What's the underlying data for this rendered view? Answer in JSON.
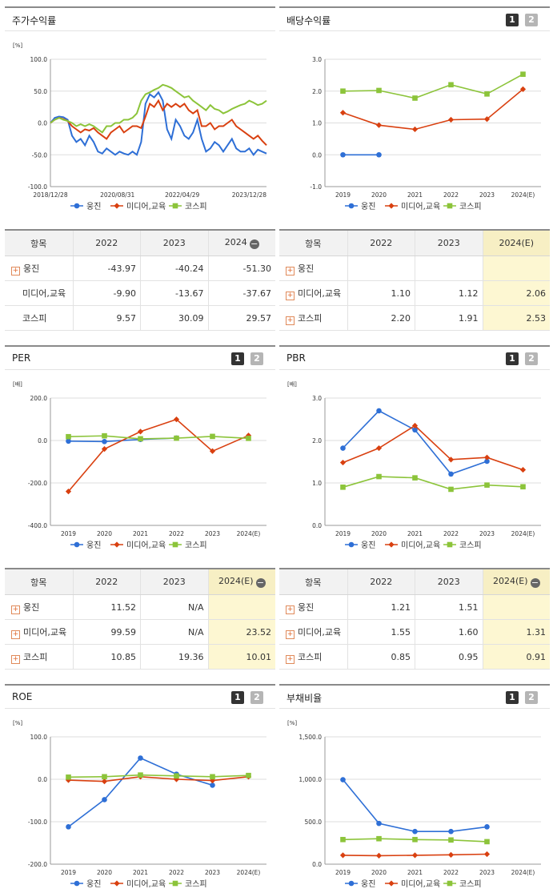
{
  "colors": {
    "s1": "#2e6fd6",
    "s2": "#d94010",
    "s3": "#8cc43a",
    "grid": "#dddddd"
  },
  "legend": [
    "웅진",
    "미디어,교육",
    "코스피"
  ],
  "charts": {
    "stock": {
      "title": "주가수익률",
      "unit": "[%]",
      "buttons": [],
      "type": "line",
      "ylim": [
        -100,
        100
      ],
      "yticks": [
        "100.0",
        "50.0",
        "0.0",
        "-50.0",
        "-100.0"
      ],
      "x_labels": [
        "2018/12/28",
        "2020/08/31",
        "2022/04/29",
        "2023/12/28"
      ],
      "series": [
        {
          "name": "웅진",
          "values": [
            0,
            8,
            10,
            9,
            5,
            -20,
            -30,
            -25,
            -35,
            -20,
            -30,
            -45,
            -48,
            -40,
            -45,
            -50,
            -45,
            -48,
            -50,
            -45,
            -50,
            -30,
            30,
            45,
            40,
            48,
            35,
            -10,
            -25,
            5,
            -5,
            -20,
            -25,
            -15,
            5,
            -25,
            -45,
            -40,
            -30,
            -35,
            -45,
            -35,
            -25,
            -40,
            -45,
            -45,
            -40,
            -50,
            -42,
            -45,
            -48
          ]
        },
        {
          "name": "미디어,교육",
          "values": [
            0,
            5,
            8,
            6,
            3,
            -5,
            -10,
            -15,
            -10,
            -12,
            -8,
            -15,
            -20,
            -25,
            -15,
            -10,
            -5,
            -15,
            -10,
            -5,
            -5,
            -8,
            10,
            30,
            25,
            35,
            20,
            30,
            25,
            30,
            25,
            30,
            20,
            15,
            20,
            -5,
            -5,
            0,
            -10,
            -5,
            -5,
            0,
            5,
            -5,
            -10,
            -15,
            -20,
            -25,
            -20,
            -28,
            -35
          ]
        },
        {
          "name": "코스피",
          "values": [
            0,
            5,
            8,
            5,
            3,
            0,
            -5,
            -2,
            -5,
            -2,
            -5,
            -10,
            -15,
            -5,
            -5,
            0,
            0,
            5,
            5,
            8,
            15,
            35,
            45,
            48,
            52,
            55,
            60,
            58,
            55,
            50,
            45,
            40,
            42,
            35,
            30,
            25,
            20,
            28,
            22,
            20,
            15,
            18,
            22,
            25,
            28,
            30,
            35,
            32,
            28,
            30,
            35
          ]
        }
      ]
    },
    "dividend": {
      "title": "배당수익률",
      "unit": "",
      "buttons": [
        "1",
        "2"
      ],
      "type": "line",
      "ylim": [
        -1,
        3
      ],
      "yticks": [
        "3.0",
        "2.0",
        "1.0",
        "0.0",
        "-1.0"
      ],
      "x_labels": [
        "2019",
        "2020",
        "2021",
        "2022",
        "2023",
        "2024(E)"
      ],
      "series": [
        {
          "name": "웅진",
          "values": [
            0.0,
            0.0,
            null,
            null,
            null,
            null
          ]
        },
        {
          "name": "미디어,교육",
          "values": [
            1.32,
            0.93,
            0.8,
            1.1,
            1.12,
            2.06
          ]
        },
        {
          "name": "코스피",
          "values": [
            2.0,
            2.02,
            1.78,
            2.2,
            1.91,
            2.53
          ]
        }
      ]
    },
    "per": {
      "title": "PER",
      "unit": "[배]",
      "buttons": [
        "1",
        "2"
      ],
      "type": "line",
      "ylim": [
        -400,
        200
      ],
      "yticks": [
        "200.0",
        "0.0",
        "-200.0",
        "-400.0"
      ],
      "x_labels": [
        "2019",
        "2020",
        "2021",
        "2022",
        "2023",
        "2024(E)"
      ],
      "series": [
        {
          "name": "웅진",
          "values": [
            -3,
            -5,
            5,
            11.52,
            null,
            null
          ]
        },
        {
          "name": "미디어,교육",
          "values": [
            -240,
            -40,
            42,
            99.59,
            -50,
            23.52
          ]
        },
        {
          "name": "코스피",
          "values": [
            18,
            22,
            8,
            10.85,
            19.36,
            10.01
          ]
        }
      ]
    },
    "pbr": {
      "title": "PBR",
      "unit": "[배]",
      "buttons": [
        "1",
        "2"
      ],
      "type": "line",
      "ylim": [
        0,
        3
      ],
      "yticks": [
        "3.0",
        "2.0",
        "1.0",
        "0.0"
      ],
      "x_labels": [
        "2019",
        "2020",
        "2021",
        "2022",
        "2023",
        "2024(E)"
      ],
      "series": [
        {
          "name": "웅진",
          "values": [
            1.82,
            2.7,
            2.25,
            1.21,
            1.51,
            null
          ]
        },
        {
          "name": "미디어,교육",
          "values": [
            1.48,
            1.82,
            2.35,
            1.55,
            1.6,
            1.31
          ]
        },
        {
          "name": "코스피",
          "values": [
            0.9,
            1.15,
            1.12,
            0.85,
            0.95,
            0.91
          ]
        }
      ]
    },
    "roe": {
      "title": "ROE",
      "unit": "[%]",
      "buttons": [
        "1",
        "2"
      ],
      "type": "line",
      "ylim": [
        -200,
        100
      ],
      "yticks": [
        "100.0",
        "0.0",
        "-100.0",
        "-200.0"
      ],
      "x_labels": [
        "2019",
        "2020",
        "2021",
        "2022",
        "2023",
        "2024(E)"
      ],
      "series": [
        {
          "name": "웅진",
          "values": [
            -112,
            -48,
            50,
            12,
            -14,
            null
          ]
        },
        {
          "name": "미디어,교육",
          "values": [
            -2,
            -5,
            6,
            0,
            -3,
            6
          ]
        },
        {
          "name": "코스피",
          "values": [
            5,
            6,
            10,
            8,
            6,
            9
          ]
        }
      ]
    },
    "debt": {
      "title": "부채비율",
      "unit": "[%]",
      "buttons": [
        "1",
        "2"
      ],
      "type": "line",
      "ylim": [
        0,
        1500
      ],
      "yticks": [
        "1,500.0",
        "1,000.0",
        "500.0",
        "0.0"
      ],
      "x_labels": [
        "2019",
        "2020",
        "2021",
        "2022",
        "2023",
        "2024(E)"
      ],
      "series": [
        {
          "name": "웅진",
          "values": [
            995,
            480,
            385,
            385,
            440,
            null
          ]
        },
        {
          "name": "미디어,교육",
          "values": [
            105,
            100,
            105,
            110,
            118,
            null
          ]
        },
        {
          "name": "코스피",
          "values": [
            290,
            300,
            290,
            285,
            265,
            null
          ]
        }
      ]
    }
  },
  "tables": {
    "stock": {
      "header": [
        "항목",
        "2022",
        "2023",
        "2024"
      ],
      "minus": true,
      "hl": false,
      "rows": [
        {
          "plus": true,
          "label": "웅진",
          "vals": [
            "-43.97",
            "-40.24",
            "-51.30"
          ]
        },
        {
          "plus": false,
          "label": "미디어,교육",
          "vals": [
            "-9.90",
            "-13.67",
            "-37.67"
          ]
        },
        {
          "plus": false,
          "label": "코스피",
          "vals": [
            "9.57",
            "30.09",
            "29.57"
          ]
        }
      ]
    },
    "dividend": {
      "header": [
        "항목",
        "2022",
        "2023",
        "2024(E)"
      ],
      "minus": false,
      "hl": true,
      "rows": [
        {
          "plus": true,
          "label": "웅진",
          "vals": [
            "",
            "",
            ""
          ]
        },
        {
          "plus": true,
          "label": "미디어,교육",
          "vals": [
            "1.10",
            "1.12",
            "2.06"
          ]
        },
        {
          "plus": true,
          "label": "코스피",
          "vals": [
            "2.20",
            "1.91",
            "2.53"
          ]
        }
      ]
    },
    "per": {
      "header": [
        "항목",
        "2022",
        "2023",
        "2024(E)"
      ],
      "minus": true,
      "hl": true,
      "rows": [
        {
          "plus": true,
          "label": "웅진",
          "vals": [
            "11.52",
            "N/A",
            ""
          ]
        },
        {
          "plus": true,
          "label": "미디어,교육",
          "vals": [
            "99.59",
            "N/A",
            "23.52"
          ]
        },
        {
          "plus": true,
          "label": "코스피",
          "vals": [
            "10.85",
            "19.36",
            "10.01"
          ]
        }
      ]
    },
    "pbr": {
      "header": [
        "항목",
        "2022",
        "2023",
        "2024(E)"
      ],
      "minus": true,
      "hl": true,
      "rows": [
        {
          "plus": true,
          "label": "웅진",
          "vals": [
            "1.21",
            "1.51",
            ""
          ]
        },
        {
          "plus": true,
          "label": "미디어,교육",
          "vals": [
            "1.55",
            "1.60",
            "1.31"
          ]
        },
        {
          "plus": true,
          "label": "코스피",
          "vals": [
            "0.85",
            "0.95",
            "0.91"
          ]
        }
      ]
    }
  }
}
